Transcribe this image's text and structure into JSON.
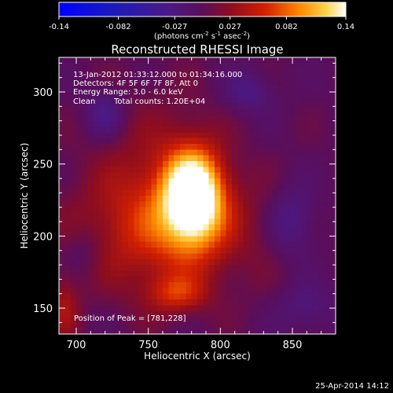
{
  "chart_data": {
    "type": "heatmap",
    "title": "Reconstructed RHESSI Image",
    "xlabel": "Heliocentric X (arcsec)",
    "ylabel": "Heliocentric Y (arcsec)",
    "xlim": [
      688,
      880
    ],
    "ylim": [
      132,
      324
    ],
    "x_ticks": [
      700,
      750,
      800,
      850
    ],
    "y_ticks": [
      150,
      200,
      250,
      300
    ],
    "colorbar": {
      "range": [
        -0.14,
        0.14
      ],
      "ticks": [
        "-0.14",
        "-0.082",
        "-0.027",
        "0.027",
        "0.082",
        "0.14"
      ],
      "unit_main": "(photons cm",
      "unit_sup1": "-2",
      "unit_mid1": " s",
      "unit_sup2": "-1",
      "unit_mid2": " asec",
      "unit_sup3": "-2",
      "unit_end": ")"
    },
    "annotations": {
      "time_range": "13-Jan-2012 01:33:12.000 to 01:34:16.000",
      "detectors": "Detectors: 4F 5F 6F 7F 8F, Att 0",
      "energy": "Energy Range: 3.0 - 6.0 keV",
      "clean_label": "Clean",
      "total_counts": "Total counts: 1.20E+04",
      "peak": "Position of Peak = [781,228]"
    },
    "peak": {
      "x": 781,
      "y": 228,
      "value": 0.14
    },
    "sources": [
      {
        "x": 781,
        "y": 228,
        "sx": 14,
        "sy": 22,
        "amp": 0.165
      },
      {
        "x": 765,
        "y": 205,
        "sx": 45,
        "sy": 28,
        "amp": 0.045
      },
      {
        "x": 770,
        "y": 160,
        "sx": 14,
        "sy": 9,
        "amp": 0.05
      },
      {
        "x": 692,
        "y": 150,
        "sx": 7,
        "sy": 16,
        "amp": 0.035
      },
      {
        "x": 755,
        "y": 230,
        "sx": 30,
        "sy": 45,
        "amp": 0.03
      },
      {
        "x": 720,
        "y": 285,
        "sx": 10,
        "sy": 12,
        "amp": -0.035
      },
      {
        "x": 820,
        "y": 300,
        "sx": 12,
        "sy": 10,
        "amp": -0.03
      },
      {
        "x": 850,
        "y": 210,
        "sx": 12,
        "sy": 18,
        "amp": -0.035
      },
      {
        "x": 860,
        "y": 150,
        "sx": 14,
        "sy": 12,
        "amp": -0.025
      },
      {
        "x": 705,
        "y": 190,
        "sx": 10,
        "sy": 12,
        "amp": -0.02
      }
    ]
  },
  "footer": {
    "date": "25-Apr-2014 14:12"
  }
}
